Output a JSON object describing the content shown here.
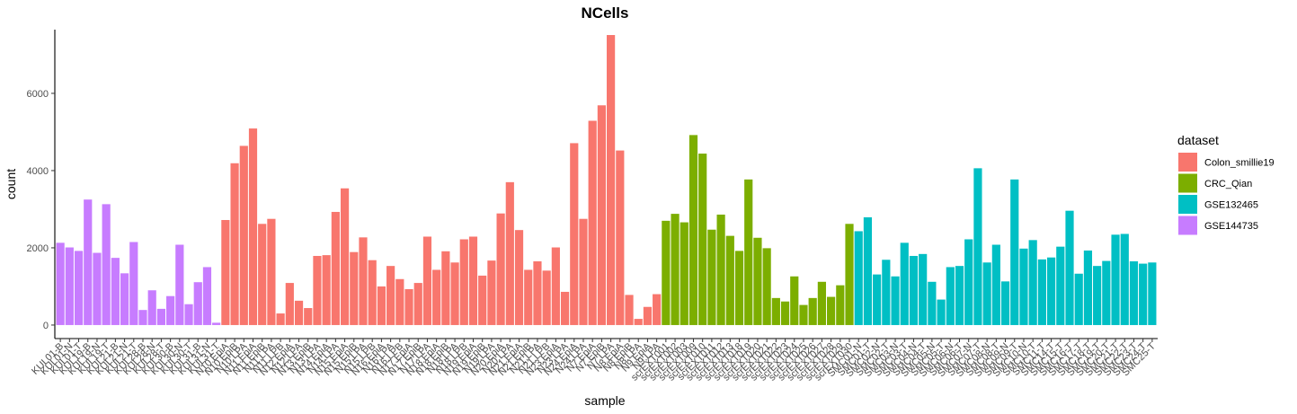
{
  "chart_data": {
    "type": "bar",
    "title": "NCells",
    "xlabel": "sample",
    "ylabel": "count",
    "ylim": [
      -350,
      7650
    ],
    "yticks": [
      0,
      2000,
      4000,
      6000
    ],
    "legend": {
      "title": "dataset",
      "position": "right",
      "entries": [
        {
          "name": "Colon_smillie19",
          "color": "#F8766D"
        },
        {
          "name": "CRC_Qian",
          "color": "#7CAE00"
        },
        {
          "name": "GSE132465",
          "color": "#00BFC4"
        },
        {
          "name": "GSE144735",
          "color": "#C77CFF"
        }
      ]
    },
    "bars": [
      {
        "label": "KUL01-B",
        "value": 2130,
        "dataset": "GSE144735"
      },
      {
        "label": "KUL01-N",
        "value": 2010,
        "dataset": "GSE144735"
      },
      {
        "label": "KUL01-T",
        "value": 1920,
        "dataset": "GSE144735"
      },
      {
        "label": "KUL19-B",
        "value": 3250,
        "dataset": "GSE144735"
      },
      {
        "label": "KUL19-N",
        "value": 1870,
        "dataset": "GSE144735"
      },
      {
        "label": "KUL19-T",
        "value": 3130,
        "dataset": "GSE144735"
      },
      {
        "label": "KUL21-B",
        "value": 1740,
        "dataset": "GSE144735"
      },
      {
        "label": "KUL21-N",
        "value": 1340,
        "dataset": "GSE144735"
      },
      {
        "label": "KUL21-T",
        "value": 2150,
        "dataset": "GSE144735"
      },
      {
        "label": "KUL28-B",
        "value": 390,
        "dataset": "GSE144735"
      },
      {
        "label": "KUL28-N",
        "value": 900,
        "dataset": "GSE144735"
      },
      {
        "label": "KUL28-T",
        "value": 420,
        "dataset": "GSE144735"
      },
      {
        "label": "KUL30-B",
        "value": 750,
        "dataset": "GSE144735"
      },
      {
        "label": "KUL30-N",
        "value": 2080,
        "dataset": "GSE144735"
      },
      {
        "label": "KUL30-T",
        "value": 540,
        "dataset": "GSE144735"
      },
      {
        "label": "KUL31-B",
        "value": 1110,
        "dataset": "GSE144735"
      },
      {
        "label": "KUL31-N",
        "value": 1500,
        "dataset": "GSE144735"
      },
      {
        "label": "KUL31-T",
        "value": 60,
        "dataset": "GSE144735"
      },
      {
        "label": "N10.EpiA",
        "value": 2720,
        "dataset": "Colon_smillie19"
      },
      {
        "label": "N10.EpiB",
        "value": 4190,
        "dataset": "Colon_smillie19"
      },
      {
        "label": "N10.LPA",
        "value": 4640,
        "dataset": "Colon_smillie19"
      },
      {
        "label": "N11.EpiA",
        "value": 5090,
        "dataset": "Colon_smillie19"
      },
      {
        "label": "N11.EpiB",
        "value": 2620,
        "dataset": "Colon_smillie19"
      },
      {
        "label": "N11.LPA",
        "value": 2750,
        "dataset": "Colon_smillie19"
      },
      {
        "label": "N11.LPB",
        "value": 300,
        "dataset": "Colon_smillie19"
      },
      {
        "label": "N12.EpiA",
        "value": 1090,
        "dataset": "Colon_smillie19"
      },
      {
        "label": "N12.LPA",
        "value": 630,
        "dataset": "Colon_smillie19"
      },
      {
        "label": "N13.EpiB",
        "value": 440,
        "dataset": "Colon_smillie19"
      },
      {
        "label": "N13.LPA",
        "value": 1790,
        "dataset": "Colon_smillie19"
      },
      {
        "label": "N14.EpiA",
        "value": 1810,
        "dataset": "Colon_smillie19"
      },
      {
        "label": "N14.LPA",
        "value": 2930,
        "dataset": "Colon_smillie19"
      },
      {
        "label": "N15.EpiA",
        "value": 3540,
        "dataset": "Colon_smillie19"
      },
      {
        "label": "N15.EpiB",
        "value": 1890,
        "dataset": "Colon_smillie19"
      },
      {
        "label": "N15.LPA",
        "value": 2270,
        "dataset": "Colon_smillie19"
      },
      {
        "label": "N15.LPB",
        "value": 1680,
        "dataset": "Colon_smillie19"
      },
      {
        "label": "N16.EpiA",
        "value": 1000,
        "dataset": "Colon_smillie19"
      },
      {
        "label": "N16.LPA",
        "value": 1530,
        "dataset": "Colon_smillie19"
      },
      {
        "label": "N16.LPB",
        "value": 1190,
        "dataset": "Colon_smillie19"
      },
      {
        "label": "N17.EpiA",
        "value": 930,
        "dataset": "Colon_smillie19"
      },
      {
        "label": "N17.EpiB",
        "value": 1090,
        "dataset": "Colon_smillie19"
      },
      {
        "label": "N17.LPA",
        "value": 2290,
        "dataset": "Colon_smillie19"
      },
      {
        "label": "N18.EpiA",
        "value": 1430,
        "dataset": "Colon_smillie19"
      },
      {
        "label": "N18.EpiB",
        "value": 1910,
        "dataset": "Colon_smillie19"
      },
      {
        "label": "N18.LPA",
        "value": 1620,
        "dataset": "Colon_smillie19"
      },
      {
        "label": "N18.LPB",
        "value": 2220,
        "dataset": "Colon_smillie19"
      },
      {
        "label": "N19.EpiA",
        "value": 2290,
        "dataset": "Colon_smillie19"
      },
      {
        "label": "N19.EpiB",
        "value": 1280,
        "dataset": "Colon_smillie19"
      },
      {
        "label": "N19.LPA",
        "value": 1670,
        "dataset": "Colon_smillie19"
      },
      {
        "label": "N20.EpiA",
        "value": 2890,
        "dataset": "Colon_smillie19"
      },
      {
        "label": "N20.LPA",
        "value": 3700,
        "dataset": "Colon_smillie19"
      },
      {
        "label": "N21.EpiA",
        "value": 2460,
        "dataset": "Colon_smillie19"
      },
      {
        "label": "N21.EpiB",
        "value": 1430,
        "dataset": "Colon_smillie19"
      },
      {
        "label": "N21.LPA",
        "value": 1650,
        "dataset": "Colon_smillie19"
      },
      {
        "label": "N21.LPB",
        "value": 1410,
        "dataset": "Colon_smillie19"
      },
      {
        "label": "N23.EpiA",
        "value": 2010,
        "dataset": "Colon_smillie19"
      },
      {
        "label": "N23.LPA",
        "value": 860,
        "dataset": "Colon_smillie19"
      },
      {
        "label": "N24.EpiA",
        "value": 4710,
        "dataset": "Colon_smillie19"
      },
      {
        "label": "N24.LPA",
        "value": 2750,
        "dataset": "Colon_smillie19"
      },
      {
        "label": "N7.EpiA",
        "value": 5290,
        "dataset": "Colon_smillie19"
      },
      {
        "label": "N7.EpiB",
        "value": 5690,
        "dataset": "Colon_smillie19"
      },
      {
        "label": "N7.LPA",
        "value": 7510,
        "dataset": "Colon_smillie19"
      },
      {
        "label": "N8.EpiA",
        "value": 4520,
        "dataset": "Colon_smillie19"
      },
      {
        "label": "N8.EpiB",
        "value": 780,
        "dataset": "Colon_smillie19"
      },
      {
        "label": "N8.LPA",
        "value": 160,
        "dataset": "Colon_smillie19"
      },
      {
        "label": "N9.EpiA",
        "value": 470,
        "dataset": "Colon_smillie19"
      },
      {
        "label": "N9.LPA",
        "value": 800,
        "dataset": "Colon_smillie19"
      },
      {
        "label": "scrEXT001",
        "value": 2700,
        "dataset": "CRC_Qian"
      },
      {
        "label": "scrEXT002",
        "value": 2880,
        "dataset": "CRC_Qian"
      },
      {
        "label": "scrEXT003",
        "value": 2660,
        "dataset": "CRC_Qian"
      },
      {
        "label": "scrEXT009",
        "value": 4920,
        "dataset": "CRC_Qian"
      },
      {
        "label": "scrEXT010",
        "value": 4440,
        "dataset": "CRC_Qian"
      },
      {
        "label": "scrEXT011",
        "value": 2470,
        "dataset": "CRC_Qian"
      },
      {
        "label": "scrEXT012",
        "value": 2860,
        "dataset": "CRC_Qian"
      },
      {
        "label": "scrEXT013",
        "value": 2310,
        "dataset": "CRC_Qian"
      },
      {
        "label": "scrEXT018",
        "value": 1920,
        "dataset": "CRC_Qian"
      },
      {
        "label": "scrEXT019",
        "value": 3770,
        "dataset": "CRC_Qian"
      },
      {
        "label": "scrEXT020",
        "value": 2260,
        "dataset": "CRC_Qian"
      },
      {
        "label": "scrEXT021",
        "value": 1990,
        "dataset": "CRC_Qian"
      },
      {
        "label": "scrEXT022",
        "value": 700,
        "dataset": "CRC_Qian"
      },
      {
        "label": "scrEXT023",
        "value": 610,
        "dataset": "CRC_Qian"
      },
      {
        "label": "scrEXT024",
        "value": 1260,
        "dataset": "CRC_Qian"
      },
      {
        "label": "scrEXT025",
        "value": 520,
        "dataset": "CRC_Qian"
      },
      {
        "label": "scrEXT026",
        "value": 700,
        "dataset": "CRC_Qian"
      },
      {
        "label": "scrEXT027",
        "value": 1120,
        "dataset": "CRC_Qian"
      },
      {
        "label": "scrEXT028",
        "value": 730,
        "dataset": "CRC_Qian"
      },
      {
        "label": "scrEXT029",
        "value": 1030,
        "dataset": "CRC_Qian"
      },
      {
        "label": "scrEXT030",
        "value": 2620,
        "dataset": "CRC_Qian"
      },
      {
        "label": "SMC01-N",
        "value": 2430,
        "dataset": "GSE132465"
      },
      {
        "label": "SMC01-T",
        "value": 2790,
        "dataset": "GSE132465"
      },
      {
        "label": "SMC02-N",
        "value": 1310,
        "dataset": "GSE132465"
      },
      {
        "label": "SMC02-T",
        "value": 1690,
        "dataset": "GSE132465"
      },
      {
        "label": "SMC03-N",
        "value": 1260,
        "dataset": "GSE132465"
      },
      {
        "label": "SMC03-T",
        "value": 2130,
        "dataset": "GSE132465"
      },
      {
        "label": "SMC04-N",
        "value": 1790,
        "dataset": "GSE132465"
      },
      {
        "label": "SMC04-T",
        "value": 1840,
        "dataset": "GSE132465"
      },
      {
        "label": "SMC05-N",
        "value": 1120,
        "dataset": "GSE132465"
      },
      {
        "label": "SMC05-T",
        "value": 660,
        "dataset": "GSE132465"
      },
      {
        "label": "SMC06-N",
        "value": 1500,
        "dataset": "GSE132465"
      },
      {
        "label": "SMC06-T",
        "value": 1530,
        "dataset": "GSE132465"
      },
      {
        "label": "SMC07-N",
        "value": 2220,
        "dataset": "GSE132465"
      },
      {
        "label": "SMC07-T",
        "value": 4060,
        "dataset": "GSE132465"
      },
      {
        "label": "SMC08-N",
        "value": 1620,
        "dataset": "GSE132465"
      },
      {
        "label": "SMC08-T",
        "value": 2080,
        "dataset": "GSE132465"
      },
      {
        "label": "SMC09-N",
        "value": 1130,
        "dataset": "GSE132465"
      },
      {
        "label": "SMC09-T",
        "value": 3770,
        "dataset": "GSE132465"
      },
      {
        "label": "SMC10-N",
        "value": 1980,
        "dataset": "GSE132465"
      },
      {
        "label": "SMC10-T",
        "value": 2200,
        "dataset": "GSE132465"
      },
      {
        "label": "SMC11-T",
        "value": 1700,
        "dataset": "GSE132465"
      },
      {
        "label": "SMC14-T",
        "value": 1750,
        "dataset": "GSE132465"
      },
      {
        "label": "SMC15-T",
        "value": 2030,
        "dataset": "GSE132465"
      },
      {
        "label": "SMC16-T",
        "value": 2960,
        "dataset": "GSE132465"
      },
      {
        "label": "SMC17-T",
        "value": 1330,
        "dataset": "GSE132465"
      },
      {
        "label": "SMC18-T",
        "value": 1930,
        "dataset": "GSE132465"
      },
      {
        "label": "SMC19-T",
        "value": 1530,
        "dataset": "GSE132465"
      },
      {
        "label": "SMC20-T",
        "value": 1660,
        "dataset": "GSE132465"
      },
      {
        "label": "SMC21-T",
        "value": 2340,
        "dataset": "GSE132465"
      },
      {
        "label": "SMC22-T",
        "value": 2360,
        "dataset": "GSE132465"
      },
      {
        "label": "SMC23-T",
        "value": 1650,
        "dataset": "GSE132465"
      },
      {
        "label": "SMC24-T",
        "value": 1590,
        "dataset": "GSE132465"
      },
      {
        "label": "SMC25-T",
        "value": 1620,
        "dataset": "GSE132465"
      }
    ]
  }
}
